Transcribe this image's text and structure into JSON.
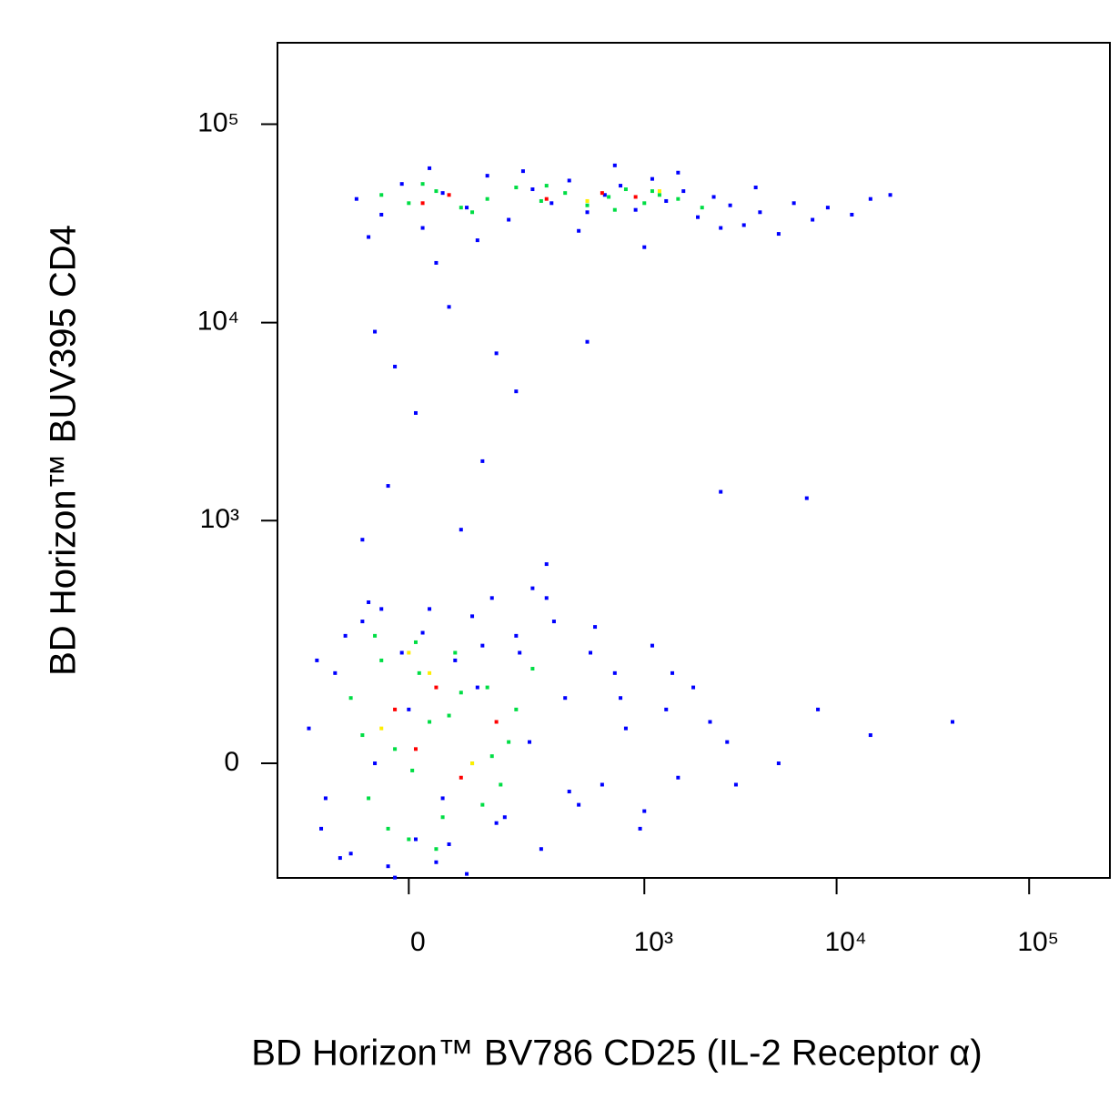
{
  "chart_data": {
    "type": "scatter",
    "scale": "biexponential",
    "x_label": "BD Horizon™ BV786 CD25 (IL-2 Receptor α)",
    "y_label": "BD Horizon™ BUV395  CD4",
    "xlim": [
      -276,
      262700
    ],
    "ylim": [
      -211,
      257400
    ],
    "xticks": [
      0,
      {
        "value": 1000,
        "label": "10³"
      },
      {
        "value": 10000,
        "label": "10⁴"
      },
      {
        "value": 100000,
        "label": "10⁵"
      }
    ],
    "yticks": [
      0,
      {
        "value": 1000,
        "label": "10³"
      },
      {
        "value": 10000,
        "label": "10⁴"
      },
      {
        "value": 100000,
        "label": "10⁵"
      }
    ],
    "series": [
      {
        "color": "#0000ff",
        "x": [
          -80,
          -40,
          -10,
          20,
          50,
          90,
          130,
          180,
          250,
          320,
          400,
          500,
          620,
          750,
          900,
          1100,
          1300,
          1600,
          1900,
          2300,
          2800,
          3300,
          4000,
          5000,
          6000,
          7500,
          9000,
          12000,
          15000,
          19000,
          -60,
          30,
          110,
          220,
          450,
          700,
          1000,
          1500,
          2500,
          3800
        ],
        "y": [
          42000,
          35000,
          50000,
          30000,
          45000,
          38000,
          55000,
          33000,
          47000,
          40000,
          52000,
          36000,
          44000,
          49000,
          37000,
          53000,
          41000,
          46000,
          34000,
          43000,
          39000,
          31000,
          36000,
          28000,
          40000,
          33000,
          38000,
          35000,
          42000,
          44000,
          27000,
          60000,
          26000,
          58000,
          29000,
          62000,
          24000,
          57000,
          30000,
          48000
        ]
      },
      {
        "color": "#0000ff",
        "x": [
          -50,
          -20,
          10,
          60,
          120,
          200,
          -30,
          80,
          150,
          500,
          2500,
          7000,
          300,
          40,
          -70
        ],
        "y": [
          9000,
          6000,
          3500,
          12000,
          2000,
          4500,
          1500,
          900,
          7000,
          8000,
          1400,
          1300,
          600,
          20000,
          800
        ]
      },
      {
        "color": "#0000ff",
        "x": [
          -180,
          -150,
          -120,
          -100,
          -90,
          -70,
          -50,
          -30,
          -10,
          0,
          10,
          30,
          50,
          70,
          90,
          110,
          140,
          170,
          200,
          240,
          280,
          330,
          380,
          450,
          520,
          600,
          700,
          800,
          950,
          1100,
          1300,
          1500,
          1800,
          2200,
          2700,
          -160,
          -110,
          -60,
          -20,
          20,
          60,
          100,
          150,
          210,
          300,
          400,
          550,
          750,
          1000,
          1400,
          5000,
          8000,
          40000,
          15000,
          3000,
          -140,
          -40,
          40,
          120,
          250
        ],
        "y": [
          50,
          -100,
          150,
          250,
          -150,
          300,
          0,
          -180,
          200,
          80,
          -120,
          350,
          -50,
          180,
          -200,
          120,
          400,
          -80,
          250,
          30,
          -140,
          300,
          100,
          -60,
          200,
          -30,
          150,
          50,
          -100,
          220,
          80,
          -20,
          120,
          60,
          30,
          180,
          -160,
          380,
          -210,
          260,
          -130,
          320,
          -90,
          200,
          400,
          -40,
          280,
          100,
          -70,
          150,
          0,
          80,
          60,
          40,
          -30,
          -50,
          350,
          -170,
          220,
          450
        ]
      },
      {
        "color": "#00dd44",
        "x": [
          -90,
          -60,
          -40,
          -20,
          0,
          15,
          30,
          50,
          70,
          100,
          130,
          160,
          200,
          -70,
          -30,
          10,
          40,
          80,
          120,
          180,
          250,
          -50,
          5,
          60,
          140
        ],
        "y": [
          100,
          -50,
          180,
          20,
          -120,
          150,
          60,
          -80,
          200,
          0,
          120,
          -30,
          80,
          40,
          -100,
          230,
          -140,
          110,
          -60,
          30,
          160,
          250,
          -10,
          70,
          10
        ]
      },
      {
        "color": "#00dd44",
        "x": [
          -40,
          0,
          40,
          80,
          130,
          200,
          280,
          380,
          500,
          650,
          800,
          1000,
          1200,
          1500,
          2000,
          20,
          100,
          300,
          700,
          1100
        ],
        "y": [
          44000,
          40000,
          46000,
          38000,
          42000,
          48000,
          41000,
          45000,
          39000,
          43000,
          47000,
          40000,
          44000,
          42000,
          38000,
          50000,
          36000,
          49000,
          37000,
          46000
        ]
      },
      {
        "color": "#ff0000",
        "x": [
          -20,
          10,
          40,
          80,
          150,
          300,
          600,
          900,
          20,
          60
        ],
        "y": [
          80,
          20,
          120,
          -20,
          60,
          42000,
          45000,
          43000,
          40000,
          44000
        ]
      },
      {
        "color": "#ffee00",
        "x": [
          -40,
          30,
          100,
          500,
          1200,
          0
        ],
        "y": [
          50,
          150,
          0,
          41000,
          46000,
          200
        ]
      }
    ]
  }
}
